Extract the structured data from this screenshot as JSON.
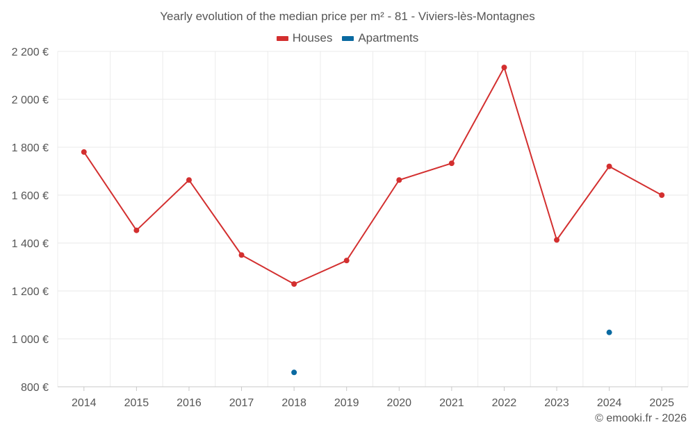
{
  "chart_data": {
    "type": "line",
    "title": "Yearly evolution of the median price per m² - 81 - Viviers-lès-Montagnes",
    "categories": [
      "2014",
      "2015",
      "2016",
      "2017",
      "2018",
      "2019",
      "2020",
      "2021",
      "2022",
      "2023",
      "2024",
      "2025"
    ],
    "series": [
      {
        "name": "Houses",
        "color": "#d32f2f",
        "values": [
          1780,
          1453,
          1663,
          1350,
          1229,
          1327,
          1663,
          1733,
          2133,
          1413,
          1720,
          1600
        ]
      },
      {
        "name": "Apartments",
        "color": "#0a6aa1",
        "values": [
          null,
          null,
          null,
          null,
          860,
          null,
          null,
          null,
          null,
          null,
          1027,
          null
        ]
      }
    ],
    "yticks": [
      "800 €",
      "1 000 €",
      "1 200 €",
      "1 400 €",
      "1 600 €",
      "1 800 €",
      "2 000 €",
      "2 200 €"
    ],
    "ylim": [
      800,
      2200
    ],
    "grid": true,
    "legend_position": "top-center"
  },
  "credit": "© emooki.fr - 2026"
}
